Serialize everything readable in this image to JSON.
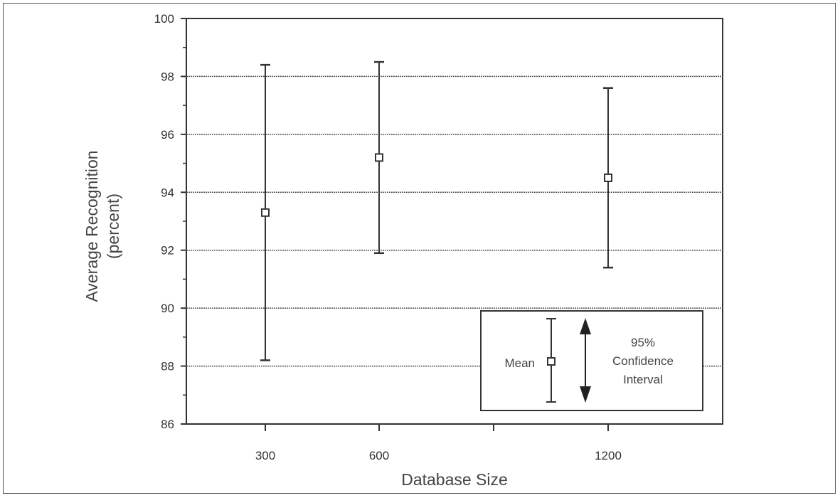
{
  "chart_data": {
    "type": "scatter",
    "subtype": "mean-with-confidence-interval",
    "xlabel": "Database Size",
    "ylabel_line1": "Average Recognition",
    "ylabel_line2": "(percent)",
    "ylim": [
      86,
      100
    ],
    "y_ticks": [
      "86",
      "88",
      "90",
      "92",
      "94",
      "96",
      "98",
      "100"
    ],
    "x_ticks": [
      "300",
      "600",
      "1200"
    ],
    "grid": "horizontal",
    "points": [
      {
        "x": "300",
        "mean": 93.3,
        "lower": 88.2,
        "upper": 98.4
      },
      {
        "x": "600",
        "mean": 95.2,
        "lower": 91.9,
        "upper": 98.5
      },
      {
        "x": "1200",
        "mean": 94.5,
        "lower": 91.4,
        "upper": 97.6
      }
    ],
    "legend": {
      "position": "bottom-right",
      "mean_label": "Mean",
      "ci_label_lines": [
        "95%",
        "Confidence",
        "Interval"
      ]
    }
  }
}
